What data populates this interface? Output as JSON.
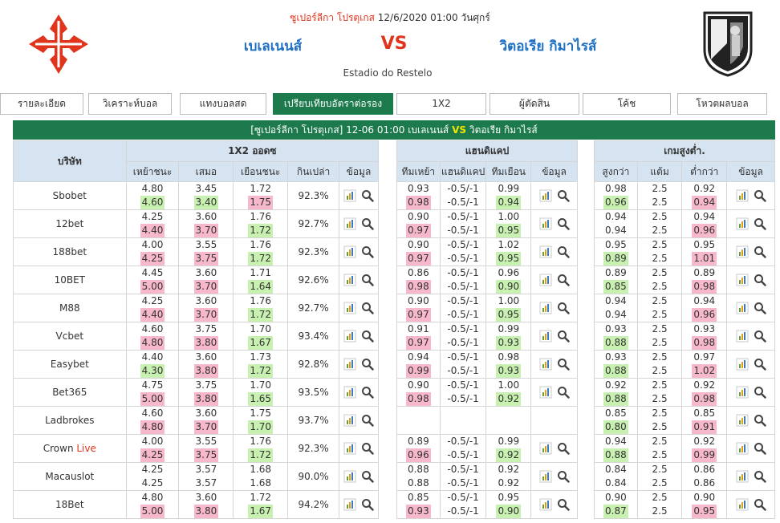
{
  "match": {
    "league": "ซูเปอร์ลีกา โปรตุเกส",
    "datetime": "12/6/2020 01:00 วันศุกร์",
    "home": "เบเลเนนส์",
    "vs": "VS",
    "away": "วิตอเรีย กิมาไรส์",
    "stadium": "Estadio do Restelo"
  },
  "tabs": [
    {
      "label": "รายละเอียด"
    },
    {
      "label": "วิเคราะห์บอล"
    },
    {
      "label": "แทงบอลสด"
    },
    {
      "label": "เปรียบเทียบอัตราต่อรอง",
      "active": true
    },
    {
      "label": "1X2"
    },
    {
      "label": "ผู้ตัดสิน"
    },
    {
      "label": "โค้ช"
    },
    {
      "label": "โหวตผลบอล"
    }
  ],
  "title_bar": {
    "league": "[ซูเปอร์ลีกา โปรตุเกส]",
    "time": "12-06 01:00",
    "home": "เบเลเนนส์",
    "vs": "VS",
    "away": "วิตอเรีย กิมาไรส์"
  },
  "headers": {
    "company": "บริษัท",
    "x12": "1X2 ออดซ",
    "hdp": "แฮนดิแคป",
    "ou": "เกมสูงต่ำ.",
    "x12_cols": [
      "เหย้าชนะ",
      "เสมอ",
      "เยือนชนะ",
      "กินเปล่า",
      "ข้อมูล"
    ],
    "hdp_cols": [
      "ทีมเหย้า",
      "แฮนดิแคป",
      "ทีมเยือน",
      "ข้อมูล"
    ],
    "ou_cols": [
      "สูงกว่า",
      "แต้ม",
      "ต่ำกว่า",
      "ข้อมูล"
    ]
  },
  "colors": {
    "green": "#1d7a4c",
    "up": "#f7b8cb",
    "down": "#c8f0b0",
    "red": "#e0341c",
    "blue": "#1e6fc4",
    "header_bg": "#d6e3f1"
  },
  "icons": [
    "chart-icon",
    "search-icon"
  ],
  "rows": [
    {
      "company": "Sbobet",
      "live": "",
      "x12": {
        "home": [
          "4.80",
          "4.60",
          "down"
        ],
        "draw": [
          "3.45",
          "3.40",
          "down"
        ],
        "away": [
          "1.72",
          "1.75",
          "up"
        ],
        "ret": "92.3%"
      },
      "hdp": {
        "home": [
          "0.93",
          "0.98",
          "up"
        ],
        "line": [
          "-0.5/-1",
          "-0.5/-1"
        ],
        "away": [
          "0.99",
          "0.94",
          "down"
        ]
      },
      "ou": {
        "over": [
          "0.98",
          "0.96",
          "down"
        ],
        "line": [
          "2.5",
          "2.5"
        ],
        "under": [
          "0.92",
          "0.94",
          "up"
        ]
      }
    },
    {
      "company": "12bet",
      "live": "",
      "x12": {
        "home": [
          "4.25",
          "4.40",
          "up"
        ],
        "draw": [
          "3.60",
          "3.70",
          "up"
        ],
        "away": [
          "1.76",
          "1.72",
          "down"
        ],
        "ret": "92.7%"
      },
      "hdp": {
        "home": [
          "0.90",
          "0.97",
          "up"
        ],
        "line": [
          "-0.5/-1",
          "-0.5/-1"
        ],
        "away": [
          "1.00",
          "0.95",
          "down"
        ]
      },
      "ou": {
        "over": [
          "0.94",
          "0.94",
          ""
        ],
        "line": [
          "2.5",
          "2.5"
        ],
        "under": [
          "0.94",
          "0.96",
          "up"
        ]
      }
    },
    {
      "company": "188bet",
      "live": "",
      "x12": {
        "home": [
          "4.00",
          "4.25",
          "up"
        ],
        "draw": [
          "3.55",
          "3.75",
          "up"
        ],
        "away": [
          "1.76",
          "1.72",
          "down"
        ],
        "ret": "92.3%"
      },
      "hdp": {
        "home": [
          "0.90",
          "0.97",
          "up"
        ],
        "line": [
          "-0.5/-1",
          "-0.5/-1"
        ],
        "away": [
          "1.02",
          "0.95",
          "down"
        ]
      },
      "ou": {
        "over": [
          "0.95",
          "0.89",
          "down"
        ],
        "line": [
          "2.5",
          "2.5"
        ],
        "under": [
          "0.95",
          "1.01",
          "up"
        ]
      }
    },
    {
      "company": "10BET",
      "live": "",
      "x12": {
        "home": [
          "4.45",
          "5.00",
          "up"
        ],
        "draw": [
          "3.60",
          "3.70",
          "up"
        ],
        "away": [
          "1.71",
          "1.64",
          "down"
        ],
        "ret": "92.6%"
      },
      "hdp": {
        "home": [
          "0.86",
          "0.98",
          "up"
        ],
        "line": [
          "-0.5/-1",
          "-0.5/-1"
        ],
        "away": [
          "0.96",
          "0.90",
          "down"
        ]
      },
      "ou": {
        "over": [
          "0.89",
          "0.85",
          "down"
        ],
        "line": [
          "2.5",
          "2.5"
        ],
        "under": [
          "0.89",
          "0.98",
          "up"
        ]
      }
    },
    {
      "company": "M88",
      "live": "",
      "x12": {
        "home": [
          "4.25",
          "4.40",
          "up"
        ],
        "draw": [
          "3.60",
          "3.70",
          "up"
        ],
        "away": [
          "1.76",
          "1.72",
          "down"
        ],
        "ret": "92.7%"
      },
      "hdp": {
        "home": [
          "0.90",
          "0.97",
          "up"
        ],
        "line": [
          "-0.5/-1",
          "-0.5/-1"
        ],
        "away": [
          "1.00",
          "0.95",
          "down"
        ]
      },
      "ou": {
        "over": [
          "0.94",
          "0.94",
          ""
        ],
        "line": [
          "2.5",
          "2.5"
        ],
        "under": [
          "0.94",
          "0.96",
          "up"
        ]
      }
    },
    {
      "company": "Vcbet",
      "live": "",
      "x12": {
        "home": [
          "4.60",
          "4.80",
          "up"
        ],
        "draw": [
          "3.75",
          "3.80",
          "up"
        ],
        "away": [
          "1.70",
          "1.67",
          "down"
        ],
        "ret": "93.4%"
      },
      "hdp": {
        "home": [
          "0.91",
          "0.97",
          "up"
        ],
        "line": [
          "-0.5/-1",
          "-0.5/-1"
        ],
        "away": [
          "0.99",
          "0.93",
          "down"
        ]
      },
      "ou": {
        "over": [
          "0.93",
          "0.88",
          "down"
        ],
        "line": [
          "2.5",
          "2.5"
        ],
        "under": [
          "0.93",
          "0.98",
          "up"
        ]
      }
    },
    {
      "company": "Easybet",
      "live": "",
      "x12": {
        "home": [
          "4.40",
          "4.30",
          "down"
        ],
        "draw": [
          "3.60",
          "3.80",
          "up"
        ],
        "away": [
          "1.73",
          "1.72",
          "down"
        ],
        "ret": "92.8%"
      },
      "hdp": {
        "home": [
          "0.94",
          "0.99",
          "up"
        ],
        "line": [
          "-0.5/-1",
          "-0.5/-1"
        ],
        "away": [
          "0.98",
          "0.93",
          "down"
        ]
      },
      "ou": {
        "over": [
          "0.93",
          "0.88",
          "down"
        ],
        "line": [
          "2.5",
          "2.5"
        ],
        "under": [
          "0.97",
          "1.02",
          "up"
        ]
      }
    },
    {
      "company": "Bet365",
      "live": "",
      "x12": {
        "home": [
          "4.75",
          "5.00",
          "up"
        ],
        "draw": [
          "3.75",
          "3.80",
          "up"
        ],
        "away": [
          "1.70",
          "1.65",
          "down"
        ],
        "ret": "93.5%"
      },
      "hdp": {
        "home": [
          "0.90",
          "0.98",
          "up"
        ],
        "line": [
          "-0.5/-1",
          "-0.5/-1"
        ],
        "away": [
          "1.00",
          "0.92",
          "down"
        ]
      },
      "ou": {
        "over": [
          "0.92",
          "0.88",
          "down"
        ],
        "line": [
          "2.5",
          "2.5"
        ],
        "under": [
          "0.92",
          "0.98",
          "up"
        ]
      }
    },
    {
      "company": "Ladbrokes",
      "live": "",
      "x12": {
        "home": [
          "4.60",
          "4.80",
          "up"
        ],
        "draw": [
          "3.60",
          "3.70",
          "up"
        ],
        "away": [
          "1.75",
          "1.70",
          "down"
        ],
        "ret": "93.7%"
      },
      "hdp": null,
      "ou": {
        "over": [
          "0.85",
          "0.80",
          "down"
        ],
        "line": [
          "2.5",
          "2.5"
        ],
        "under": [
          "0.85",
          "0.91",
          "up"
        ]
      }
    },
    {
      "company": "Crown",
      "live": "Live",
      "x12": {
        "home": [
          "4.00",
          "4.25",
          "up"
        ],
        "draw": [
          "3.55",
          "3.75",
          "up"
        ],
        "away": [
          "1.76",
          "1.72",
          "down"
        ],
        "ret": "92.3%"
      },
      "hdp": {
        "home": [
          "0.89",
          "0.96",
          "up"
        ],
        "line": [
          "-0.5/-1",
          "-0.5/-1"
        ],
        "away": [
          "0.99",
          "0.92",
          "down"
        ]
      },
      "ou": {
        "over": [
          "0.94",
          "0.88",
          "down"
        ],
        "line": [
          "2.5",
          "2.5"
        ],
        "under": [
          "0.92",
          "0.99",
          "up"
        ]
      }
    },
    {
      "company": "Macauslot",
      "live": "",
      "x12": {
        "home": [
          "4.25",
          "4.25",
          ""
        ],
        "draw": [
          "3.57",
          "3.57",
          ""
        ],
        "away": [
          "1.68",
          "1.68",
          ""
        ],
        "ret": "90.0%"
      },
      "hdp": {
        "home": [
          "0.88",
          "0.88",
          ""
        ],
        "line": [
          "-0.5/-1",
          "-0.5/-1"
        ],
        "away": [
          "0.92",
          "0.92",
          ""
        ]
      },
      "ou": {
        "over": [
          "0.84",
          "0.84",
          ""
        ],
        "line": [
          "2.5",
          "2.5"
        ],
        "under": [
          "0.86",
          "0.86",
          ""
        ]
      }
    },
    {
      "company": "18Bet",
      "live": "",
      "x12": {
        "home": [
          "4.80",
          "5.00",
          "up"
        ],
        "draw": [
          "3.60",
          "3.80",
          "up"
        ],
        "away": [
          "1.72",
          "1.67",
          "down"
        ],
        "ret": "94.2%"
      },
      "hdp": {
        "home": [
          "0.85",
          "0.93",
          "up"
        ],
        "line": [
          "-0.5/-1",
          "-0.5/-1"
        ],
        "away": [
          "0.95",
          "0.90",
          "down"
        ]
      },
      "ou": {
        "over": [
          "0.90",
          "0.87",
          "down"
        ],
        "line": [
          "2.5",
          "2.5"
        ],
        "under": [
          "0.90",
          "0.95",
          "up"
        ]
      }
    }
  ]
}
